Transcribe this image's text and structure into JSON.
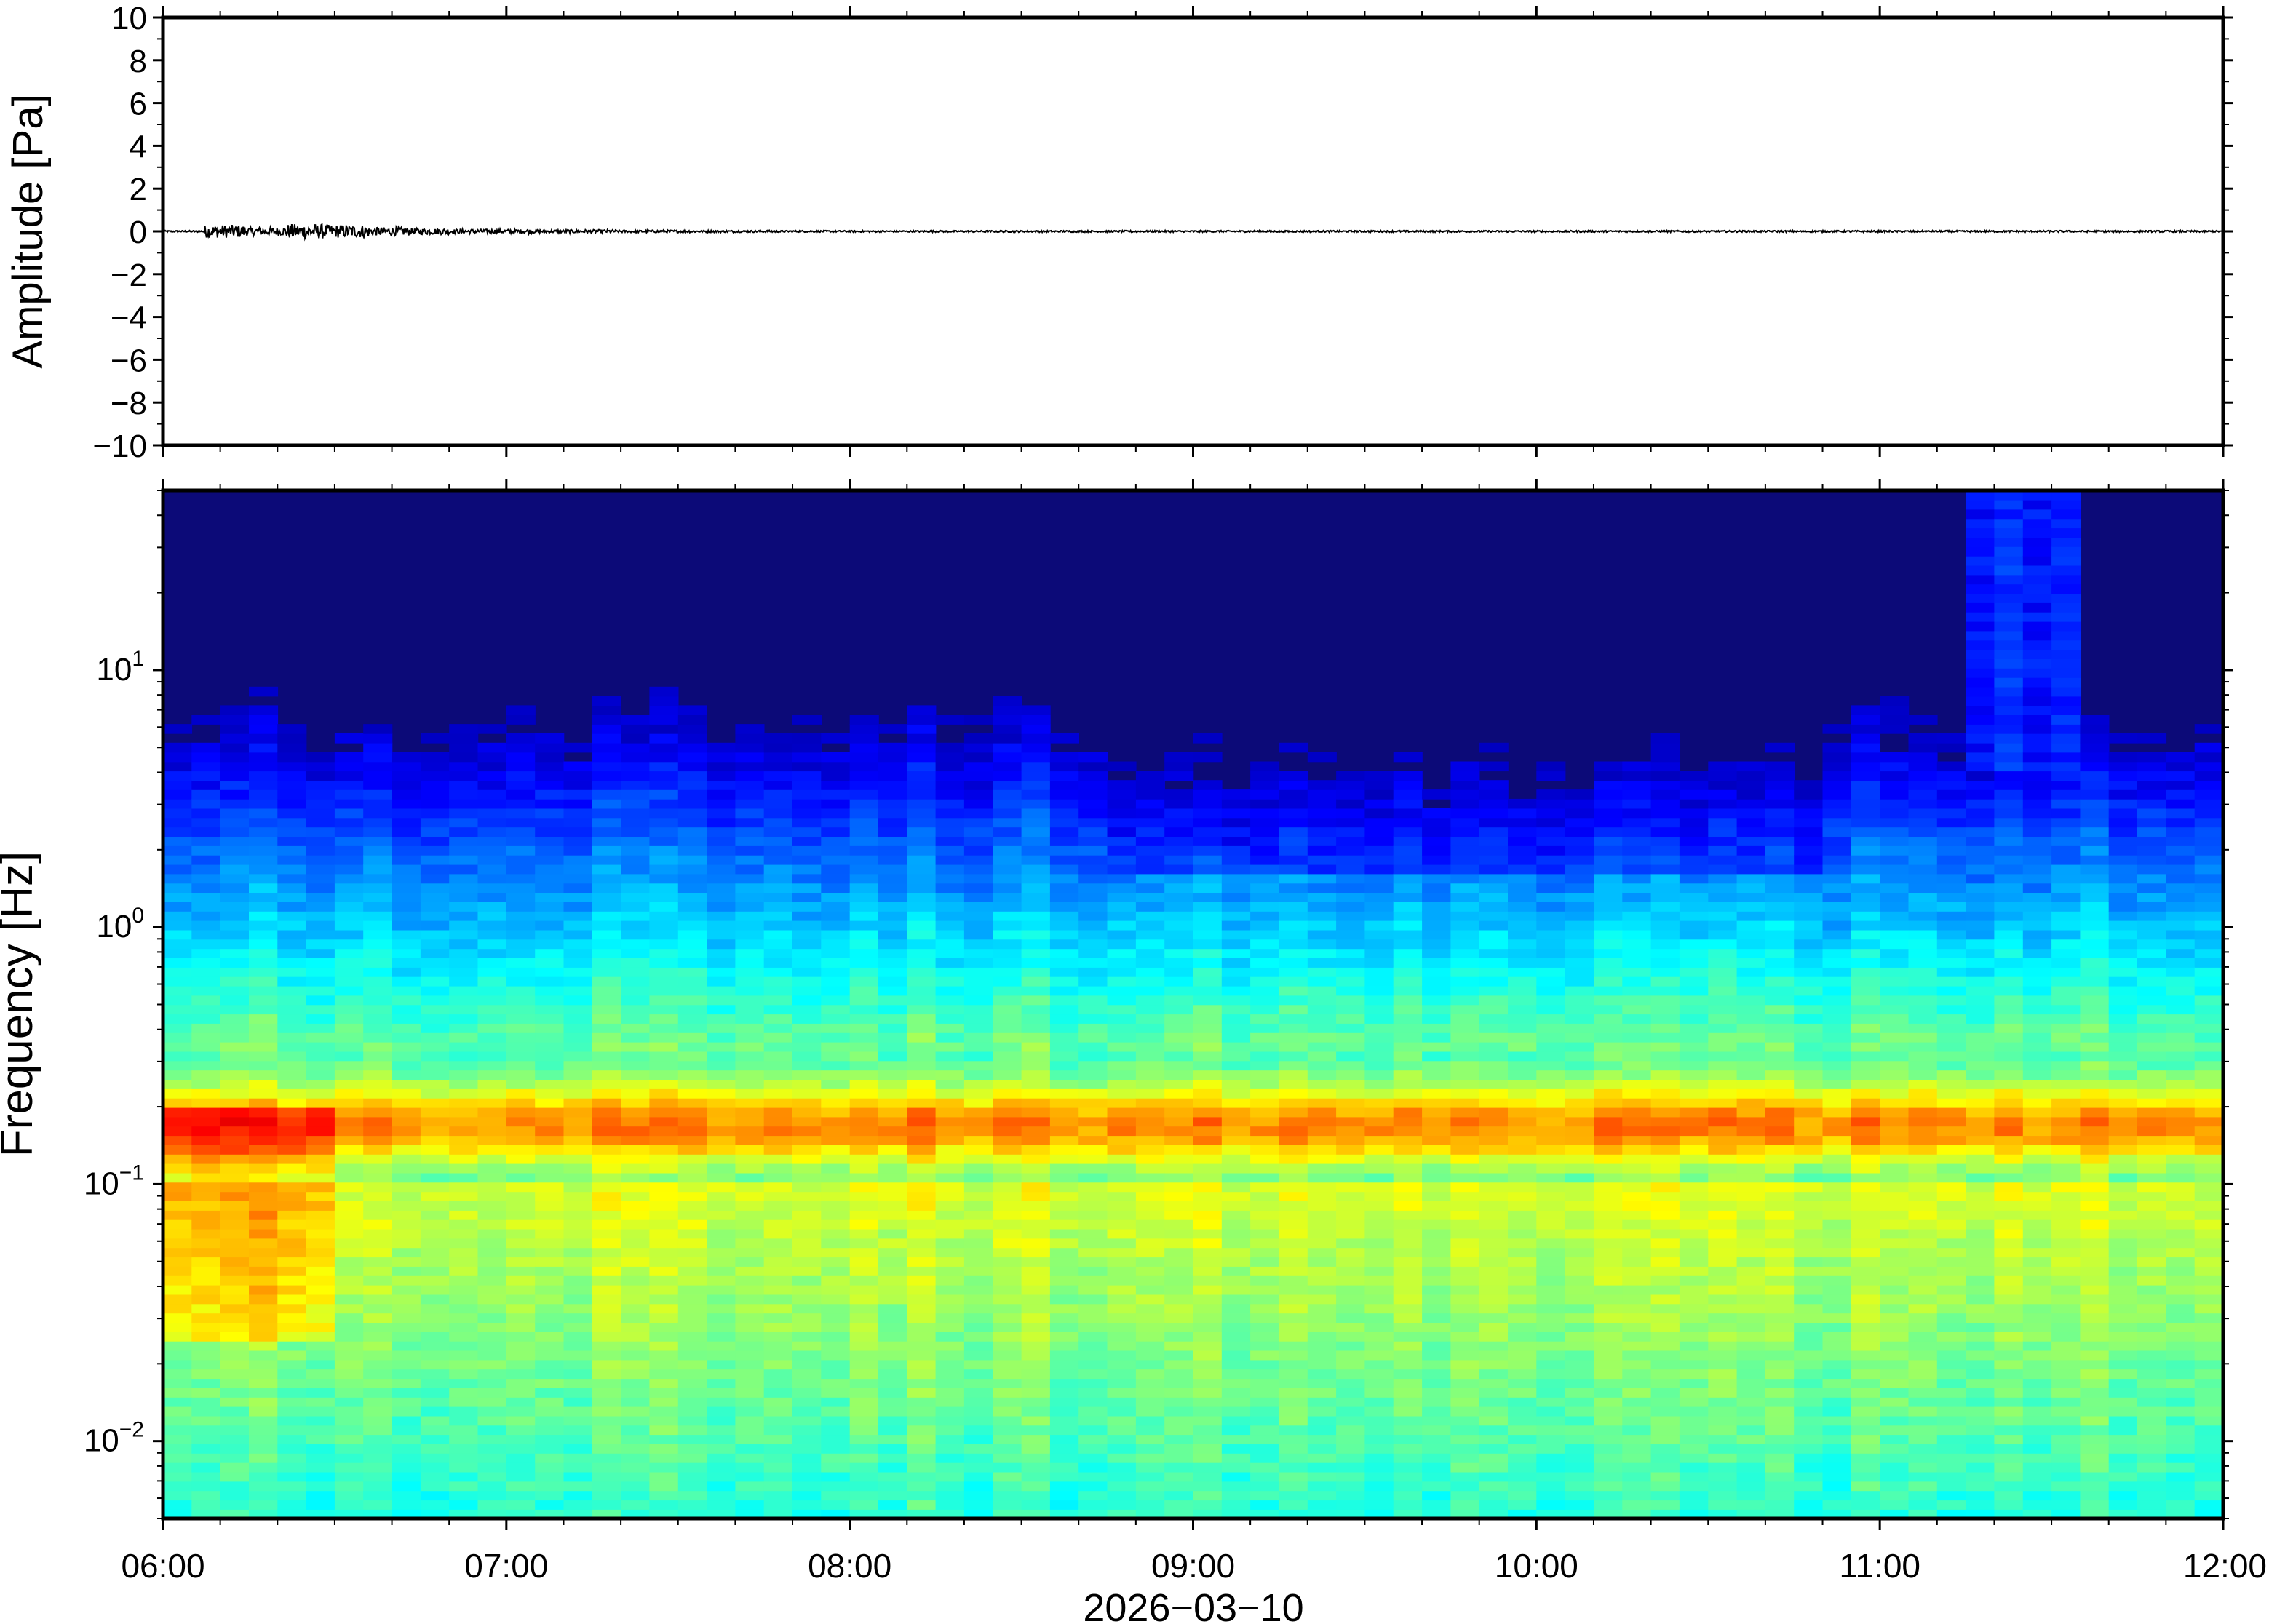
{
  "chart_data": [
    {
      "type": "line",
      "panel": "waveform",
      "ylabel": "Amplitude [Pa]",
      "xlabel": "",
      "ylim": [
        -10,
        10
      ],
      "yticks": [
        10,
        8,
        6,
        4,
        2,
        0,
        -2,
        -4,
        -6,
        -8,
        -10
      ],
      "ytick_labels": [
        "10",
        "8",
        "6",
        "4",
        "2",
        "0",
        "−2",
        "−4",
        "−6",
        "−8",
        "−10"
      ],
      "x_range": [
        "06:00",
        "12:00"
      ],
      "series": [
        {
          "description_free": true,
          "values": [
            0.0,
            0.3,
            -0.2,
            0.35,
            -0.3,
            0.2,
            -0.15,
            0.1,
            -0.1,
            0.08,
            -0.08,
            0.06,
            -0.06,
            0.05,
            -0.05,
            0.04,
            -0.04,
            0.04,
            -0.04,
            0.03,
            -0.03,
            0.03,
            -0.03,
            0.03,
            -0.03,
            0.02,
            -0.02,
            0.02,
            -0.02,
            0.02,
            -0.02,
            0.02,
            -0.02,
            0.02,
            -0.02,
            0.02,
            -0.02,
            0.02,
            -0.02,
            0.02,
            -0.02,
            0.03,
            -0.03,
            0.02,
            -0.02,
            0.02,
            -0.02,
            0.02,
            -0.02,
            0.0
          ],
          "color": "#000000"
        }
      ],
      "grid": false
    },
    {
      "type": "heatmap",
      "panel": "spectrogram",
      "ylabel": "Frequency [Hz]",
      "xlabel": "2026−03−10",
      "y_scale": "log",
      "ylim": [
        0.005,
        50
      ],
      "ytick_labels": [
        {
          "base": "10",
          "exp": "1",
          "value": 10
        },
        {
          "base": "10",
          "exp": "0",
          "value": 1
        },
        {
          "base": "10",
          "exp": "−1",
          "value": 0.1
        },
        {
          "base": "10",
          "exp": "−2",
          "value": 0.01
        }
      ],
      "x_categories": [
        "06:00",
        "07:00",
        "08:00",
        "09:00",
        "10:00",
        "11:00",
        "12:00"
      ],
      "colormap": "jet",
      "grid": false
    }
  ],
  "x_tick_labels": [
    "06:00",
    "07:00",
    "08:00",
    "09:00",
    "10:00",
    "11:00",
    "12:00"
  ],
  "date_label": "2026−03−10",
  "top_ylabel": "Amplitude [Pa]",
  "bottom_ylabel": "Frequency [Hz]"
}
